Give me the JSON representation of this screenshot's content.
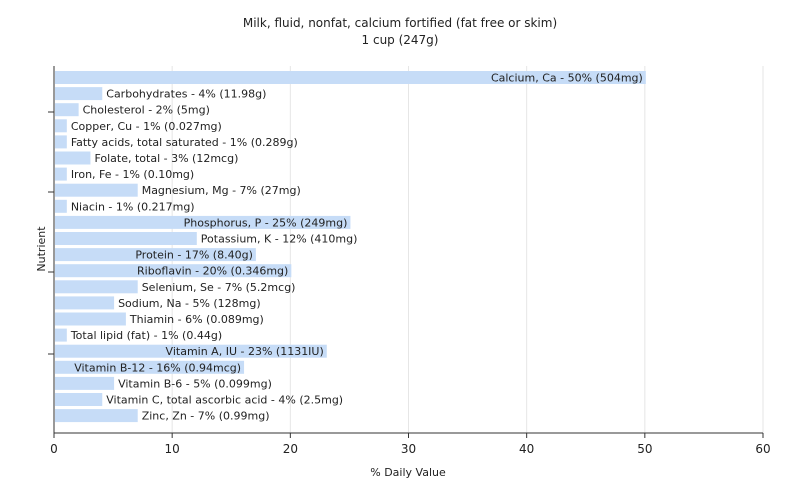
{
  "chart_data": {
    "type": "bar",
    "orientation": "horizontal",
    "title": "Milk, fluid, nonfat, calcium fortified (fat free or skim)",
    "subtitle": "1 cup (247g)",
    "xlabel": "% Daily Value",
    "ylabel": "Nutrient",
    "xlim": [
      0,
      60
    ],
    "xticks": [
      "0",
      "10",
      "20",
      "30",
      "40",
      "50",
      "60"
    ],
    "grid": true,
    "bar_color": "#c6dcf7",
    "categories": [
      "Calcium, Ca",
      "Carbohydrates",
      "Cholesterol",
      "Copper, Cu",
      "Fatty acids, total saturated",
      "Folate, total",
      "Iron, Fe",
      "Magnesium, Mg",
      "Niacin",
      "Phosphorus, P",
      "Potassium, K",
      "Protein",
      "Riboflavin",
      "Selenium, Se",
      "Sodium, Na",
      "Thiamin",
      "Total lipid (fat)",
      "Vitamin A, IU",
      "Vitamin B-12",
      "Vitamin B-6",
      "Vitamin C, total ascorbic acid",
      "Zinc, Zn"
    ],
    "values": [
      50,
      4,
      2,
      1,
      1,
      3,
      1,
      7,
      1,
      25,
      12,
      17,
      20,
      7,
      5,
      6,
      1,
      23,
      16,
      5,
      4,
      7
    ],
    "labels": [
      "Calcium, Ca - 50% (504mg)",
      "Carbohydrates - 4% (11.98g)",
      "Cholesterol - 2% (5mg)",
      "Copper, Cu - 1% (0.027mg)",
      "Fatty acids, total saturated - 1% (0.289g)",
      "Folate, total - 3% (12mcg)",
      "Iron, Fe - 1% (0.10mg)",
      "Magnesium, Mg - 7% (27mg)",
      "Niacin - 1% (0.217mg)",
      "Phosphorus, P - 25% (249mg)",
      "Potassium, K - 12% (410mg)",
      "Protein - 17% (8.40g)",
      "Riboflavin - 20% (0.346mg)",
      "Selenium, Se - 7% (5.2mcg)",
      "Sodium, Na - 5% (128mg)",
      "Thiamin - 6% (0.089mg)",
      "Total lipid (fat) - 1% (0.44g)",
      "Vitamin A, IU - 23% (1131IU)",
      "Vitamin B-12 - 16% (0.94mcg)",
      "Vitamin B-6 - 5% (0.099mg)",
      "Vitamin C, total ascorbic acid - 4% (2.5mg)",
      "Zinc, Zn - 7% (0.99mg)"
    ]
  }
}
